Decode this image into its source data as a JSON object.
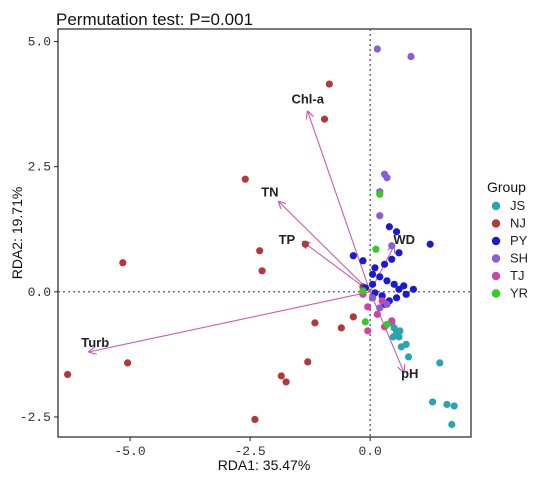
{
  "chart_data": {
    "type": "scatter",
    "title": "Permutation test: P=0.001",
    "xlabel": "RDA1: 35.47%",
    "ylabel": "RDA2: 19.71%",
    "xlim": [
      -6.5,
      2.1
    ],
    "ylim": [
      -2.9,
      5.25
    ],
    "xticks": [
      -5.0,
      -2.5,
      0.0
    ],
    "xtick_labels": [
      "-5.0",
      "-2.5",
      "0.0"
    ],
    "yticks": [
      -2.5,
      0.0,
      2.5,
      5.0
    ],
    "ytick_labels": [
      "-2.5",
      "0.0",
      "2.5",
      "5.0"
    ],
    "grid": false,
    "reference_lines": {
      "x": 0,
      "y": 0,
      "style": "dotted"
    },
    "legend": {
      "title": "Group",
      "placement": "right"
    },
    "series": [
      {
        "name": "JS",
        "color": "#2aa3b3",
        "points": [
          [
            0.45,
            -0.62
          ],
          [
            0.5,
            -0.72
          ],
          [
            0.55,
            -0.8
          ],
          [
            0.6,
            -0.9
          ],
          [
            0.62,
            -0.78
          ],
          [
            0.48,
            -0.9
          ],
          [
            0.65,
            -1.1
          ],
          [
            0.75,
            -1.05
          ],
          [
            0.8,
            -1.3
          ],
          [
            1.45,
            -1.42
          ],
          [
            1.3,
            -2.2
          ],
          [
            1.6,
            -2.25
          ],
          [
            1.75,
            -2.28
          ],
          [
            1.7,
            -2.65
          ]
        ]
      },
      {
        "name": "NJ",
        "color": "#b03a3a",
        "points": [
          [
            -0.85,
            4.15
          ],
          [
            -0.95,
            3.45
          ],
          [
            -2.6,
            2.25
          ],
          [
            -1.35,
            0.95
          ],
          [
            -2.3,
            0.82
          ],
          [
            -2.25,
            0.42
          ],
          [
            -5.15,
            0.58
          ],
          [
            -6.3,
            -1.65
          ],
          [
            -5.05,
            -1.42
          ],
          [
            -1.15,
            -0.62
          ],
          [
            -1.3,
            -1.4
          ],
          [
            -1.85,
            -1.68
          ],
          [
            -1.75,
            -1.8
          ],
          [
            -2.4,
            -2.55
          ],
          [
            -0.6,
            -0.72
          ],
          [
            -0.35,
            -0.5
          ],
          [
            0.05,
            -0.12
          ],
          [
            -0.15,
            0.1
          ]
        ]
      },
      {
        "name": "PY",
        "color": "#1a1ad0",
        "points": [
          [
            0.4,
            1.3
          ],
          [
            0.55,
            1.2
          ],
          [
            1.25,
            0.95
          ],
          [
            0.6,
            0.78
          ],
          [
            0.45,
            0.65
          ],
          [
            0.3,
            0.55
          ],
          [
            0.1,
            0.48
          ],
          [
            -0.35,
            0.72
          ],
          [
            -0.15,
            0.62
          ],
          [
            0.05,
            0.35
          ],
          [
            0.2,
            0.3
          ],
          [
            0.35,
            0.22
          ],
          [
            0.5,
            0.15
          ],
          [
            0.7,
            0.12
          ],
          [
            0.75,
            -0.05
          ],
          [
            0.55,
            -0.12
          ],
          [
            0.4,
            -0.18
          ],
          [
            0.25,
            -0.08
          ],
          [
            0.1,
            -0.02
          ],
          [
            -0.1,
            0.08
          ],
          [
            0.05,
            0.15
          ],
          [
            0.9,
            0.05
          ],
          [
            0.6,
            0.05
          ],
          [
            0.3,
            -0.25
          ]
        ]
      },
      {
        "name": "SH",
        "color": "#8a5cd6",
        "points": [
          [
            0.15,
            4.85
          ],
          [
            0.85,
            4.7
          ],
          [
            0.3,
            2.35
          ],
          [
            0.35,
            2.28
          ],
          [
            0.2,
            2.0
          ],
          [
            0.2,
            1.52
          ],
          [
            0.45,
            0.92
          ],
          [
            0.05,
            -0.12
          ],
          [
            0.2,
            -0.32
          ],
          [
            0.35,
            -0.25
          ]
        ]
      },
      {
        "name": "TJ",
        "color": "#cc44aa",
        "points": [
          [
            -0.15,
            -0.05
          ],
          [
            0.25,
            -0.18
          ],
          [
            -0.05,
            -0.3
          ],
          [
            0.15,
            -0.45
          ],
          [
            0.45,
            -0.58
          ],
          [
            0.3,
            -0.7
          ],
          [
            -0.05,
            -0.78
          ]
        ]
      },
      {
        "name": "YR",
        "color": "#33cc22",
        "points": [
          [
            0.2,
            1.95
          ],
          [
            0.12,
            0.85
          ],
          [
            -0.15,
            0.02
          ],
          [
            0.35,
            -0.65
          ],
          [
            -0.1,
            -0.6
          ]
        ]
      }
    ],
    "arrows": [
      {
        "label": "Chl-a",
        "x": -1.3,
        "y": 3.6
      },
      {
        "label": "TN",
        "x": -1.9,
        "y": 1.8
      },
      {
        "label": "TP",
        "x": -1.4,
        "y": 1.0
      },
      {
        "label": "WD",
        "x": 0.5,
        "y": 0.92
      },
      {
        "label": "pH",
        "x": 0.7,
        "y": -1.6
      },
      {
        "label": "Turb",
        "x": -5.85,
        "y": -1.2
      }
    ],
    "arrow_color": "#cc5bb5"
  }
}
